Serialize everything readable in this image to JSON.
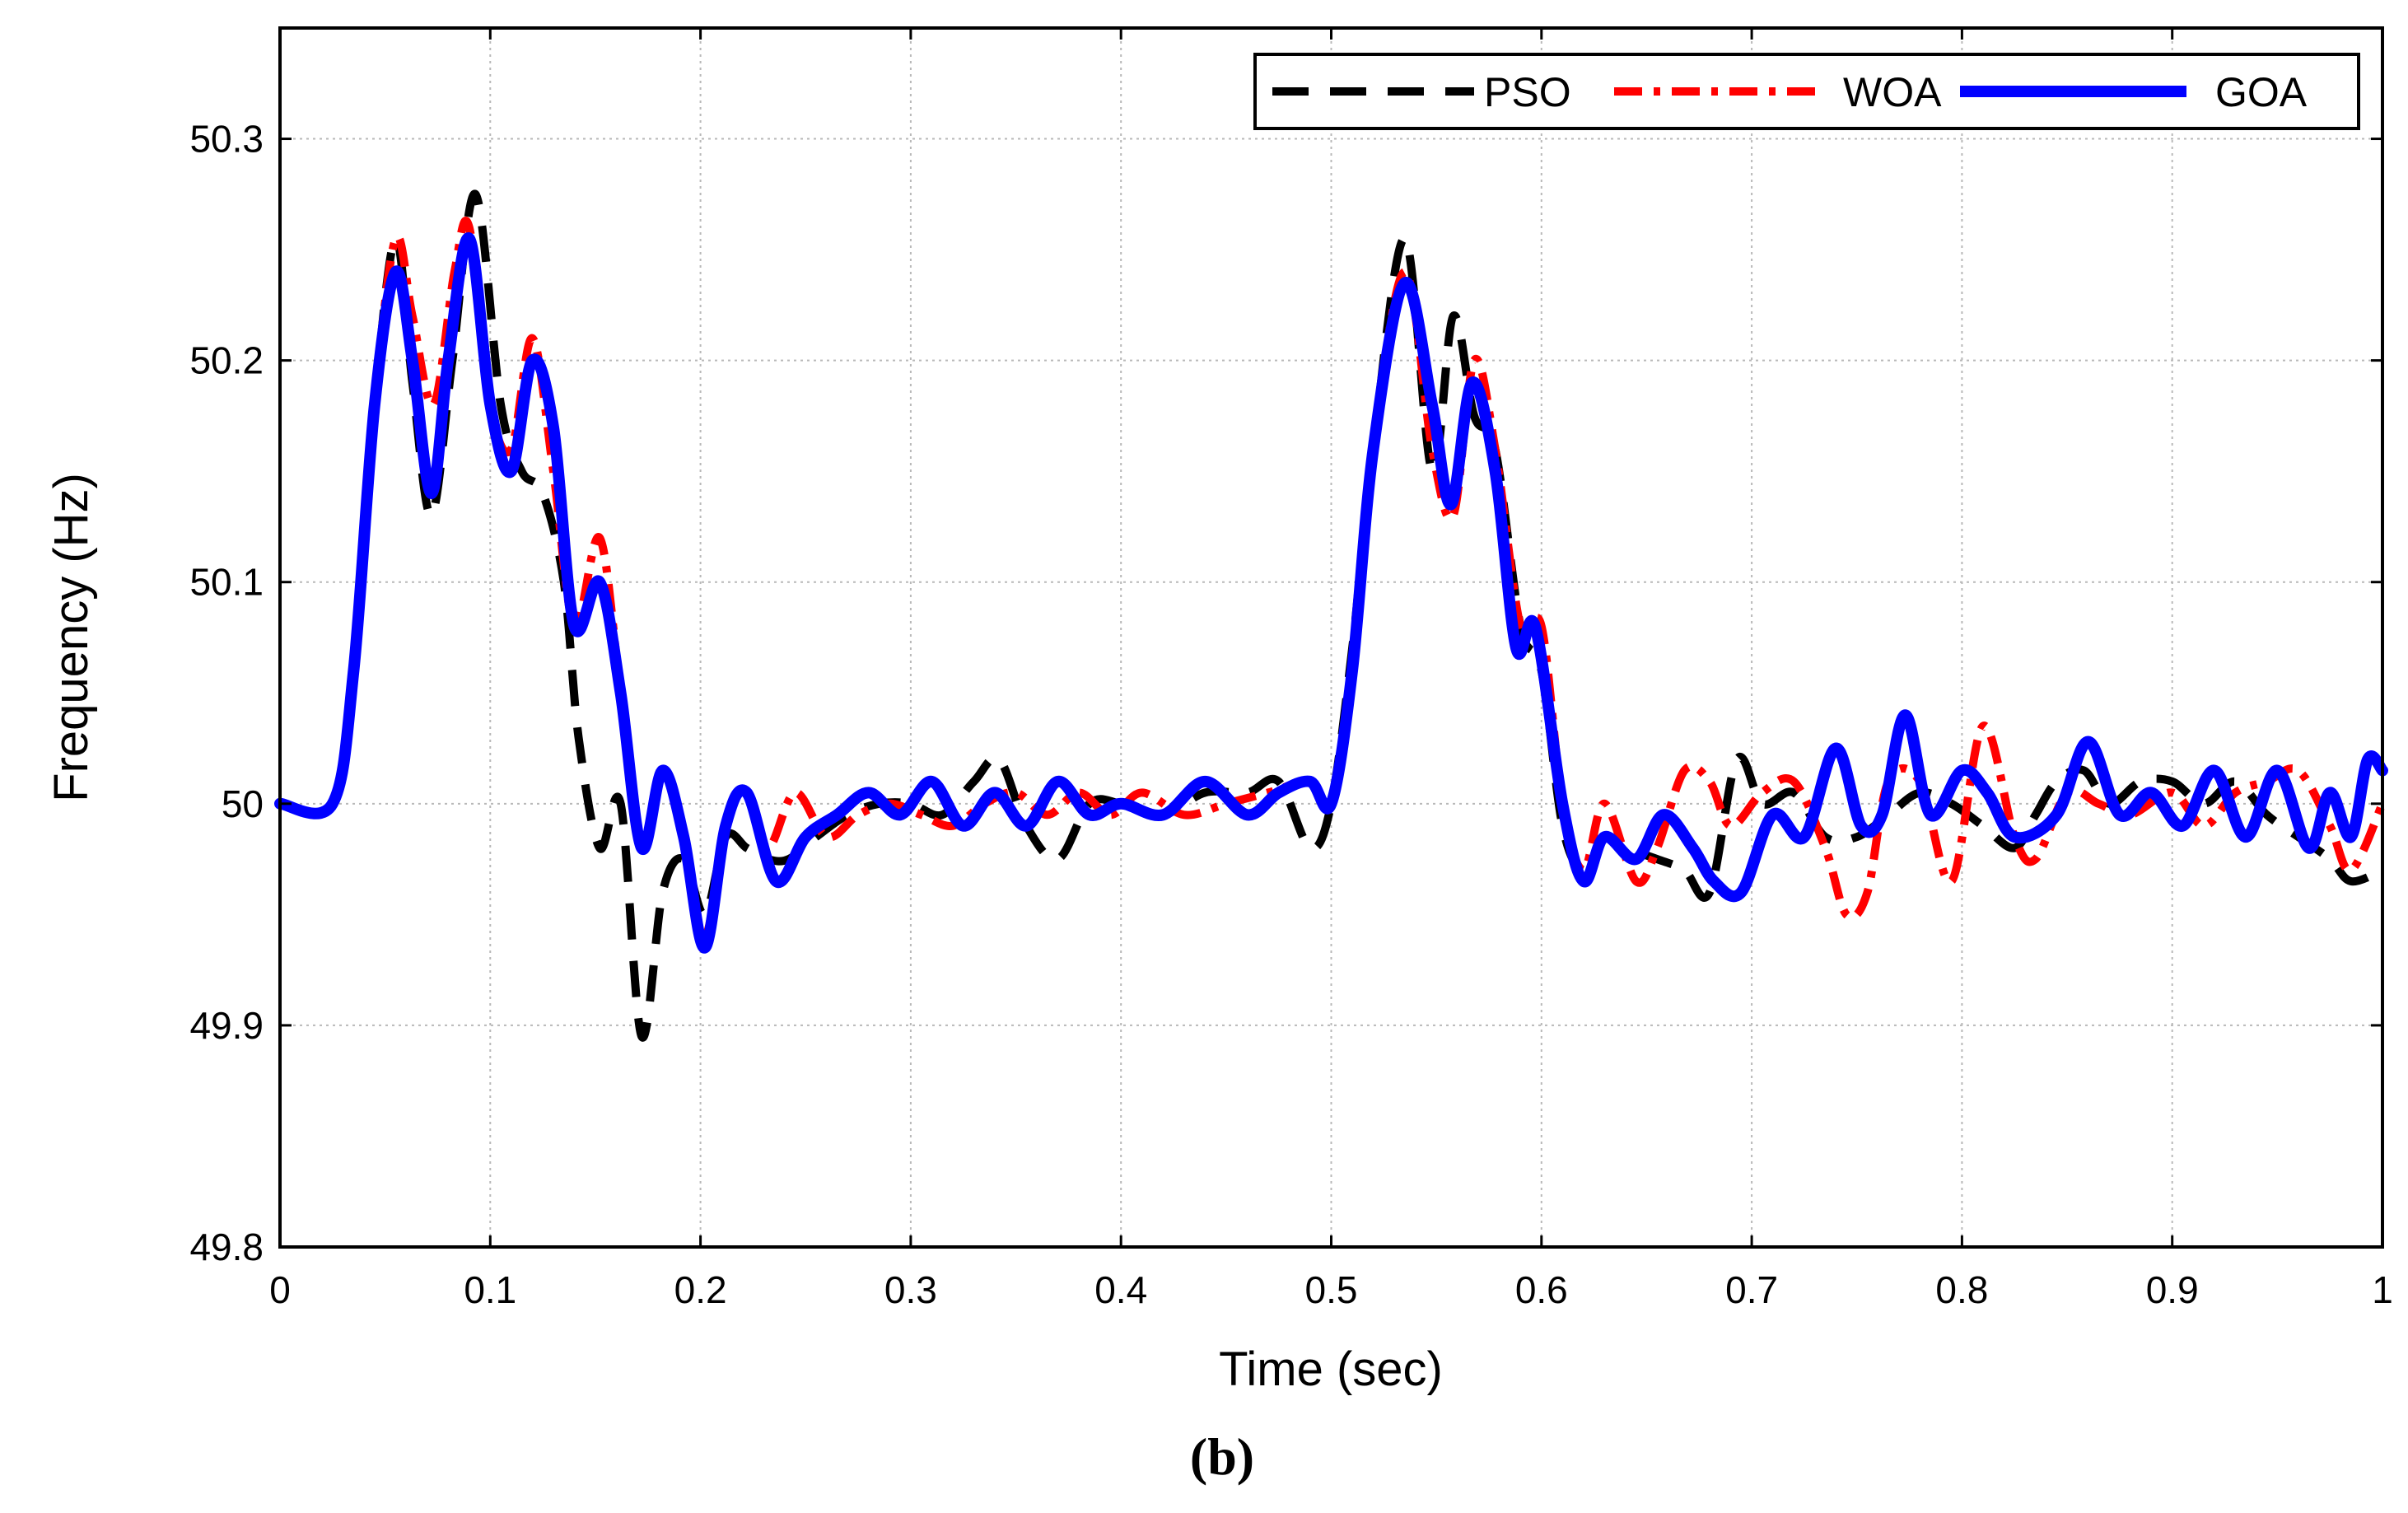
{
  "caption": "(b)",
  "chart_data": {
    "type": "line",
    "title": "",
    "xlabel": "Time (sec)",
    "ylabel": "Frequency (Hz)",
    "xlim": [
      0,
      1
    ],
    "ylim": [
      49.8,
      50.35
    ],
    "xticks": [
      0,
      0.1,
      0.2,
      0.3,
      0.4,
      0.5,
      0.6,
      0.7,
      0.8,
      0.9,
      1
    ],
    "xtick_labels": [
      "0",
      "0.1",
      "0.2",
      "0.3",
      "0.4",
      "0.5",
      "0.6",
      "0.7",
      "0.8",
      "0.9",
      "1"
    ],
    "yticks": [
      49.8,
      49.9,
      50,
      50.1,
      50.2,
      50.3
    ],
    "ytick_labels": [
      "49.8",
      "49.9",
      "50",
      "50.1",
      "50.2",
      "50.3"
    ],
    "grid": true,
    "legend_position": "top-right",
    "series": [
      {
        "name": "PSO",
        "color": "#000000",
        "style": "dashed",
        "x": [
          0,
          0.025,
          0.035,
          0.045,
          0.055,
          0.063,
          0.072,
          0.082,
          0.093,
          0.105,
          0.115,
          0.125,
          0.135,
          0.142,
          0.152,
          0.162,
          0.172,
          0.182,
          0.192,
          0.202,
          0.212,
          0.222,
          0.232,
          0.242,
          0.255,
          0.27,
          0.285,
          0.3,
          0.315,
          0.33,
          0.342,
          0.355,
          0.37,
          0.385,
          0.4,
          0.42,
          0.44,
          0.46,
          0.475,
          0.49,
          0.5,
          0.51,
          0.52,
          0.535,
          0.548,
          0.558,
          0.568,
          0.578,
          0.59,
          0.6,
          0.61,
          0.62,
          0.63,
          0.64,
          0.655,
          0.668,
          0.68,
          0.693,
          0.705,
          0.72,
          0.735,
          0.75,
          0.765,
          0.78,
          0.795,
          0.81,
          0.825,
          0.835,
          0.845,
          0.858,
          0.87,
          0.885,
          0.9,
          0.915,
          0.93,
          0.945,
          0.96,
          0.975,
          0.985,
          1
        ],
        "y": [
          50,
          50,
          50.06,
          50.18,
          50.255,
          50.19,
          50.13,
          50.2,
          50.275,
          50.18,
          50.15,
          50.14,
          50.1,
          50.03,
          49.98,
          50,
          49.895,
          49.96,
          49.975,
          49.95,
          49.985,
          49.98,
          49.975,
          49.975,
          49.985,
          49.995,
          50,
          50,
          49.995,
          50.01,
          50.02,
          49.99,
          49.975,
          50,
          50,
          49.995,
          50.005,
          50.005,
          50.01,
          49.98,
          50,
          50.07,
          50.16,
          50.255,
          50.15,
          50.22,
          50.175,
          50.16,
          50.08,
          50.06,
          49.99,
          49.97,
          49.985,
          49.98,
          49.975,
          49.97,
          49.96,
          50.02,
          50,
          50.005,
          49.985,
          49.985,
          49.995,
          50.005,
          50,
          49.99,
          49.98,
          49.995,
          50.01,
          50.015,
          50,
          50.01,
          50.01,
          50,
          50.01,
          49.995,
          49.985,
          49.975,
          49.965,
          49.97
        ]
      },
      {
        "name": "WOA",
        "color": "#ff0000",
        "style": "dashdot",
        "x": [
          0,
          0.025,
          0.035,
          0.045,
          0.055,
          0.063,
          0.073,
          0.083,
          0.09,
          0.1,
          0.11,
          0.12,
          0.13,
          0.14,
          0.152,
          0.162,
          0.172,
          0.182,
          0.192,
          0.202,
          0.212,
          0.222,
          0.232,
          0.245,
          0.26,
          0.275,
          0.29,
          0.305,
          0.32,
          0.335,
          0.35,
          0.365,
          0.38,
          0.395,
          0.41,
          0.43,
          0.45,
          0.47,
          0.49,
          0.5,
          0.51,
          0.52,
          0.535,
          0.548,
          0.558,
          0.568,
          0.578,
          0.59,
          0.6,
          0.61,
          0.62,
          0.63,
          0.645,
          0.655,
          0.668,
          0.68,
          0.69,
          0.705,
          0.72,
          0.735,
          0.745,
          0.755,
          0.765,
          0.78,
          0.795,
          0.81,
          0.825,
          0.835,
          0.85,
          0.865,
          0.88,
          0.9,
          0.915,
          0.93,
          0.945,
          0.96,
          0.975,
          0.985,
          1
        ],
        "y": [
          50,
          50,
          50.06,
          50.18,
          50.255,
          50.22,
          50.18,
          50.24,
          50.26,
          50.18,
          50.16,
          50.21,
          50.15,
          50.08,
          50.12,
          50.05,
          49.98,
          50.015,
          49.985,
          49.94,
          49.99,
          50.005,
          49.98,
          50.005,
          49.985,
          49.995,
          50,
          49.995,
          49.99,
          50,
          50.005,
          49.995,
          50.005,
          49.995,
          50.005,
          49.995,
          50,
          50.005,
          50.01,
          50,
          50.06,
          50.16,
          50.24,
          50.16,
          50.13,
          50.2,
          50.16,
          50.08,
          50.08,
          50,
          49.97,
          50,
          49.965,
          49.98,
          50.015,
          50.01,
          49.99,
          50.005,
          50.01,
          49.98,
          49.95,
          49.96,
          50.01,
          50.01,
          49.965,
          50.035,
          49.985,
          49.975,
          50.005,
          50,
          49.995,
          50.005,
          49.99,
          50.005,
          50.01,
          50.015,
          49.99,
          49.97,
          50
        ]
      },
      {
        "name": "GOA",
        "color": "#0000ff",
        "style": "solid",
        "x": [
          0,
          0.025,
          0.035,
          0.045,
          0.055,
          0.063,
          0.072,
          0.08,
          0.09,
          0.1,
          0.11,
          0.12,
          0.13,
          0.14,
          0.152,
          0.162,
          0.172,
          0.182,
          0.192,
          0.202,
          0.212,
          0.222,
          0.236,
          0.25,
          0.265,
          0.28,
          0.295,
          0.31,
          0.325,
          0.34,
          0.355,
          0.37,
          0.385,
          0.4,
          0.42,
          0.44,
          0.46,
          0.475,
          0.49,
          0.5,
          0.51,
          0.52,
          0.535,
          0.548,
          0.557,
          0.567,
          0.578,
          0.588,
          0.597,
          0.61,
          0.62,
          0.63,
          0.645,
          0.658,
          0.672,
          0.682,
          0.695,
          0.71,
          0.725,
          0.74,
          0.752,
          0.762,
          0.773,
          0.785,
          0.8,
          0.812,
          0.825,
          0.845,
          0.86,
          0.875,
          0.89,
          0.905,
          0.92,
          0.935,
          0.95,
          0.965,
          0.975,
          0.985,
          0.993,
          1
        ],
        "y": [
          50,
          50,
          50.06,
          50.18,
          50.24,
          50.2,
          50.14,
          50.2,
          50.255,
          50.18,
          50.15,
          50.2,
          50.17,
          50.08,
          50.1,
          50.05,
          49.98,
          50.015,
          49.985,
          49.935,
          49.99,
          50.005,
          49.965,
          49.985,
          49.995,
          50.005,
          49.995,
          50.01,
          49.99,
          50.005,
          49.99,
          50.01,
          49.995,
          50,
          49.995,
          50.01,
          49.995,
          50.005,
          50.01,
          50,
          50.06,
          50.16,
          50.235,
          50.18,
          50.135,
          50.19,
          50.15,
          50.07,
          50.08,
          50,
          49.965,
          49.985,
          49.975,
          49.995,
          49.98,
          49.965,
          49.96,
          49.995,
          49.985,
          50.025,
          49.99,
          49.995,
          50.04,
          49.995,
          50.015,
          50.005,
          49.985,
          49.995,
          50.028,
          49.995,
          50.005,
          49.99,
          50.015,
          49.985,
          50.015,
          49.98,
          50.005,
          49.985,
          50.02,
          50.015
        ]
      }
    ]
  }
}
